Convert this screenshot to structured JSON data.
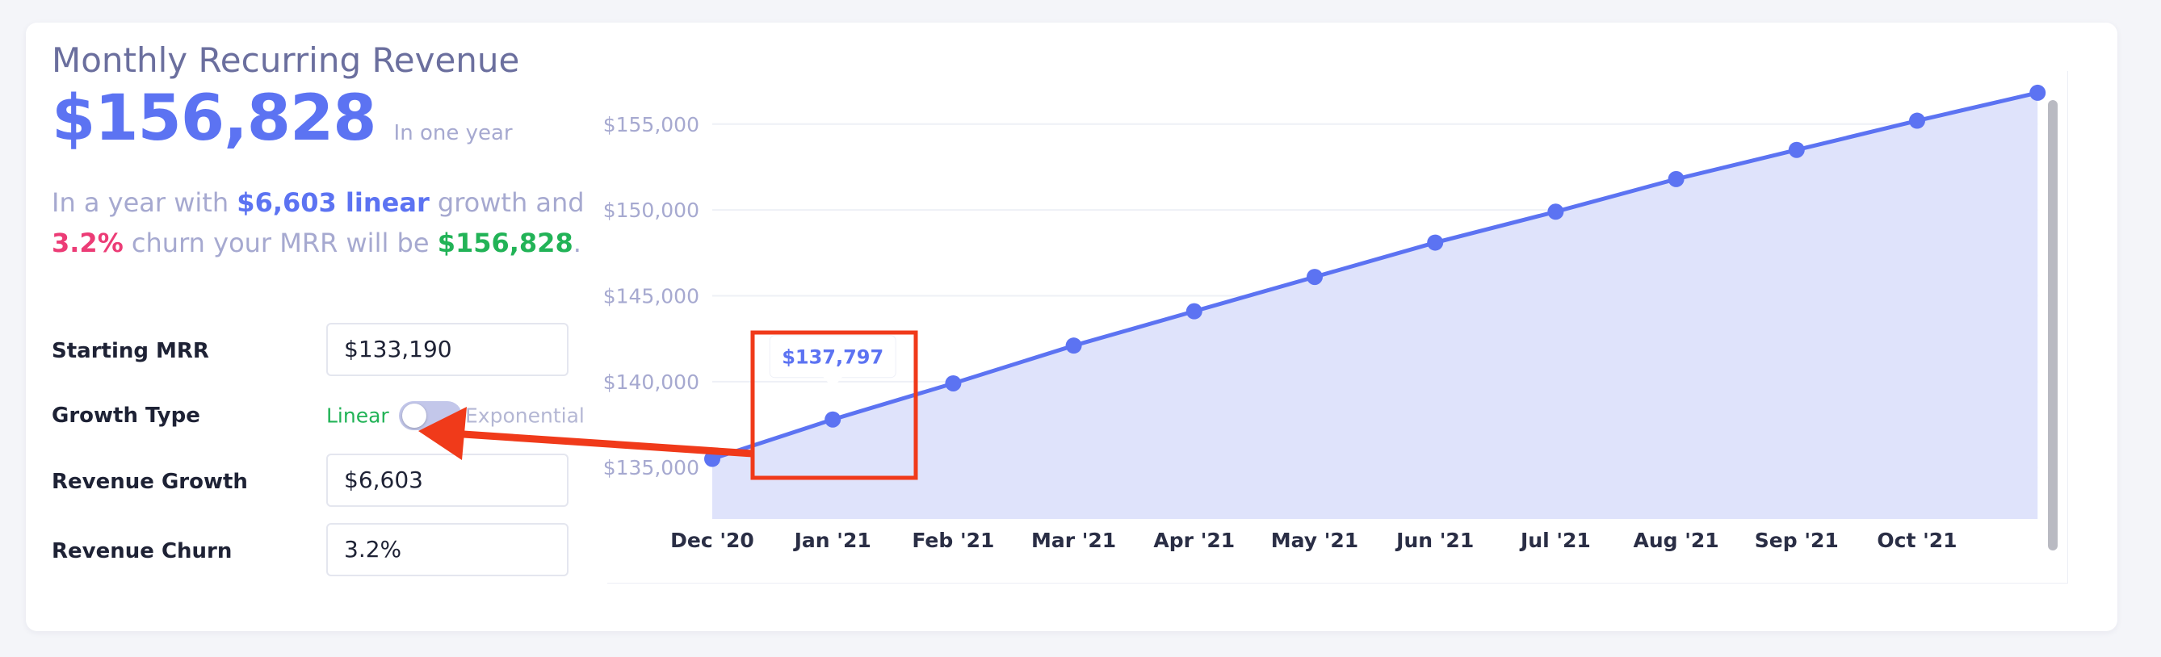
{
  "header": {
    "title": "Monthly Recurring Revenue",
    "mrr_value": "$156,828",
    "mrr_sub": "In one year"
  },
  "summary": {
    "part1": "In a year with ",
    "growth_value": "$6,603 linear",
    "part2": " growth and",
    "churn_value": "3.2%",
    "part3": " churn your MRR will be ",
    "result_value": "$156,828",
    "part4": "."
  },
  "form": {
    "starting_mrr_label": "Starting MRR",
    "starting_mrr_value": "$133,190",
    "growth_type_label": "Growth Type",
    "growth_type_left": "Linear",
    "growth_type_right": "Exponential",
    "growth_type_selected": "Linear",
    "revenue_growth_label": "Revenue Growth",
    "revenue_growth_value": "$6,603",
    "revenue_churn_label": "Revenue Churn",
    "revenue_churn_value": "3.2%"
  },
  "tooltip": {
    "text": "$137,797"
  },
  "colors": {
    "accent": "#5c73f2",
    "area_fill": "#dfe3fb",
    "churn": "#ec3c76",
    "growth_positive": "#22b357",
    "annotation": "#f03a1a"
  },
  "chart_data": {
    "type": "area",
    "x_tick_labels": [
      "Dec '20",
      "Jan '21",
      "Feb '21",
      "Mar '21",
      "Apr '21",
      "May '21",
      "Jun '21",
      "Jul '21",
      "Aug '21",
      "Sep '21",
      "Oct '21"
    ],
    "y_tick_labels": [
      "$135,000",
      "$140,000",
      "$145,000",
      "$150,000",
      "$155,000"
    ],
    "y_ticks": [
      135000,
      140000,
      145000,
      150000,
      155000
    ],
    "ylim": [
      132000,
      158000
    ],
    "series": [
      {
        "values": [
          135500,
          137797,
          139900,
          142100,
          144100,
          146100,
          148100,
          149900,
          151800,
          153500,
          155200,
          156828
        ]
      }
    ],
    "highlighted_point_index": 1,
    "grid": true
  }
}
